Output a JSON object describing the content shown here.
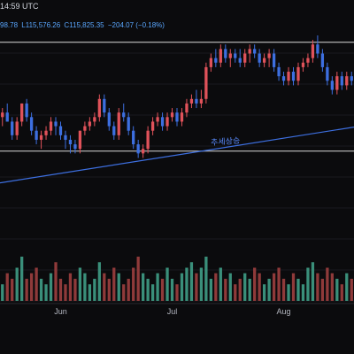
{
  "header": {
    "time_fragment": "14:59 UTC",
    "ohlc": {
      "low_fragment": "98.78",
      "low_value": "L115,576.26",
      "close_value": "C115,825.35",
      "change": "−204.07 (−0.18%)"
    }
  },
  "colors": {
    "background": "#0b0b0d",
    "up": "#e0525a",
    "down": "#3d6fe0",
    "volume_up": "#3a8f7a",
    "volume_down": "#8f3a3a",
    "trendline": "#3d6fe0",
    "box": "#d9d9d9",
    "grid": "#1a1a1e"
  },
  "chart_data": {
    "type": "candlestick",
    "x_ticks": [
      "Jun",
      "Jul",
      "Aug"
    ],
    "annotation": "추세상승",
    "candles": [
      [
        106,
        108,
        104,
        107
      ],
      [
        107,
        109,
        105,
        105
      ],
      [
        105,
        106,
        101,
        102
      ],
      [
        102,
        106,
        101,
        105
      ],
      [
        105,
        109,
        104,
        109
      ],
      [
        109,
        110,
        105,
        106
      ],
      [
        106,
        107,
        102,
        103
      ],
      [
        103,
        104,
        100,
        101
      ],
      [
        101,
        103,
        99,
        102
      ],
      [
        102,
        104,
        101,
        103
      ],
      [
        103,
        106,
        102,
        105
      ],
      [
        105,
        106,
        102,
        104
      ],
      [
        104,
        105,
        101,
        102
      ],
      [
        102,
        103,
        99,
        101
      ],
      [
        101,
        102,
        98,
        100
      ],
      [
        100,
        101,
        98,
        99
      ],
      [
        99,
        103,
        98,
        103
      ],
      [
        103,
        105,
        102,
        104
      ],
      [
        104,
        106,
        103,
        105
      ],
      [
        105,
        107,
        104,
        106
      ],
      [
        106,
        111,
        105,
        110
      ],
      [
        110,
        111,
        106,
        107
      ],
      [
        107,
        108,
        103,
        104
      ],
      [
        104,
        105,
        101,
        102
      ],
      [
        102,
        108,
        101,
        107
      ],
      [
        107,
        109,
        105,
        106
      ],
      [
        106,
        107,
        102,
        103
      ],
      [
        103,
        104,
        99,
        100
      ],
      [
        100,
        101,
        97,
        98
      ],
      [
        98,
        100,
        97,
        99
      ],
      [
        99,
        104,
        98,
        103
      ],
      [
        103,
        106,
        102,
        105
      ],
      [
        105,
        107,
        104,
        106
      ],
      [
        106,
        107,
        103,
        104
      ],
      [
        104,
        107,
        103,
        106
      ],
      [
        106,
        108,
        105,
        107
      ],
      [
        107,
        108,
        104,
        105
      ],
      [
        105,
        108,
        104,
        107
      ],
      [
        107,
        110,
        106,
        109
      ],
      [
        109,
        111,
        108,
        110
      ],
      [
        110,
        112,
        108,
        109
      ],
      [
        109,
        112,
        108,
        110
      ],
      [
        110,
        118,
        109,
        117
      ],
      [
        117,
        120,
        116,
        119
      ],
      [
        119,
        121,
        117,
        118
      ],
      [
        118,
        122,
        117,
        121
      ],
      [
        121,
        122,
        118,
        119
      ],
      [
        119,
        121,
        117,
        120
      ],
      [
        120,
        121,
        118,
        119
      ],
      [
        119,
        121,
        117,
        118
      ],
      [
        118,
        121,
        117,
        120
      ],
      [
        120,
        122,
        118,
        121
      ],
      [
        121,
        122,
        119,
        120
      ],
      [
        120,
        121,
        117,
        118
      ],
      [
        118,
        120,
        117,
        119
      ],
      [
        119,
        121,
        117,
        120
      ],
      [
        120,
        121,
        116,
        117
      ],
      [
        117,
        118,
        114,
        115
      ],
      [
        115,
        116,
        113,
        114
      ],
      [
        114,
        117,
        113,
        116
      ],
      [
        116,
        117,
        113,
        114
      ],
      [
        114,
        118,
        113,
        117
      ],
      [
        117,
        119,
        116,
        118
      ],
      [
        118,
        120,
        117,
        119
      ],
      [
        119,
        123,
        118,
        122
      ],
      [
        122,
        124,
        119,
        120
      ],
      [
        120,
        121,
        116,
        117
      ],
      [
        117,
        118,
        113,
        114
      ],
      [
        114,
        115,
        111,
        112
      ],
      [
        112,
        116,
        111,
        115
      ],
      [
        115,
        116,
        112,
        113
      ],
      [
        113,
        116,
        112,
        115
      ],
      [
        115,
        116,
        113,
        114
      ]
    ],
    "volumes": [
      3,
      5,
      4,
      6,
      8,
      4,
      5,
      6,
      4,
      3,
      5,
      7,
      4,
      3,
      5,
      4,
      6,
      5,
      3,
      4,
      7,
      5,
      4,
      6,
      5,
      3,
      4,
      6,
      8,
      5,
      4,
      3,
      5,
      4,
      6,
      4,
      3,
      5,
      6,
      7,
      5,
      6,
      8,
      4,
      5,
      6,
      4,
      5,
      3,
      4,
      5,
      4,
      6,
      5,
      3,
      4,
      5,
      6,
      4,
      3,
      5,
      4,
      3,
      6,
      7,
      5,
      4,
      6,
      5,
      4,
      3,
      5,
      4
    ],
    "box_range": [
      98.5,
      122.5
    ],
    "trendline": [
      [
        0,
        91.5
      ],
      [
        72,
        103.8
      ]
    ],
    "ylim": [
      85,
      124
    ]
  }
}
